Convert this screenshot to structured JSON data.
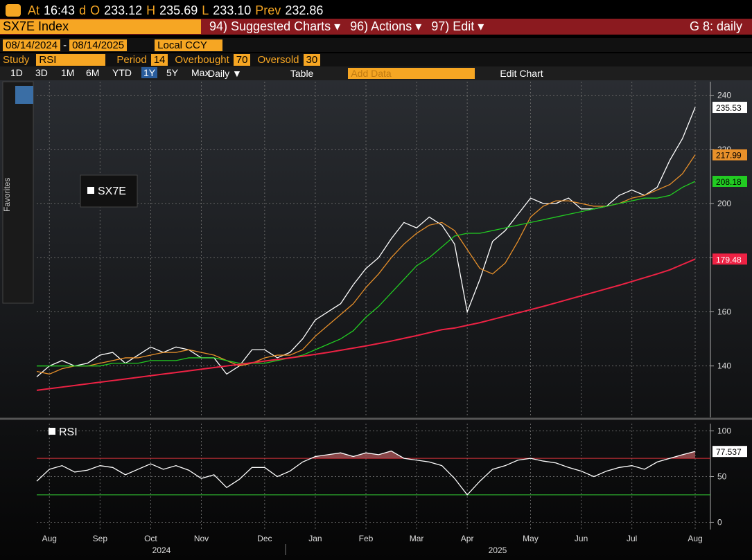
{
  "header": {
    "at_label": "At",
    "time": "16:43",
    "d": "d",
    "open_label": "O",
    "open": "233.12",
    "high_label": "H",
    "high": "235.69",
    "low_label": "L",
    "low": "233.10",
    "prev_label": "Prev",
    "prev": "232.86"
  },
  "toolbar": {
    "ticker": "SX7E Index",
    "suggested": "94) Suggested Charts ▾",
    "actions": "96) Actions ▾",
    "edit": "97) Edit ▾",
    "graph": "G 8: daily",
    "date_from": "08/14/2024",
    "date_sep": "-",
    "date_to": "08/14/2025",
    "currency": "Local CCY",
    "study_label": "Study",
    "study": "RSI",
    "period_label": "Period",
    "period": "14",
    "overbought_label": "Overbought",
    "oversold_label": "Oversold",
    "ranges": [
      "1D",
      "3D",
      "1M",
      "6M",
      "YTD",
      "1Y",
      "5Y",
      "Max"
    ],
    "frequency": "Daily ▼",
    "table": "Table",
    "add_data": "Add Data",
    "edit_chart": "Edit Chart",
    "favorites": "Favorites"
  },
  "chart_data": [
    {
      "type": "line",
      "ylim": [
        121,
        245
      ],
      "yticks": [
        140,
        160,
        180,
        200,
        220,
        240
      ],
      "grid": true,
      "series": [
        {
          "name": "SX7E",
          "color": "#ffffff",
          "values": [
            136,
            140,
            142,
            140,
            141,
            144,
            145,
            141,
            144,
            147,
            145,
            147,
            146,
            143,
            143,
            137,
            140,
            146,
            146,
            143,
            145,
            150,
            157,
            160,
            163,
            170,
            176,
            180,
            187,
            193,
            191,
            195,
            192,
            185,
            160,
            172,
            186,
            190,
            196,
            202,
            200,
            200,
            202,
            198,
            198,
            199,
            203,
            205,
            203,
            206,
            216,
            224,
            235.53
          ]
        },
        {
          "color": "#e8902a",
          "values": [
            138,
            137,
            139,
            140,
            140,
            141,
            142,
            143,
            143,
            144,
            145,
            145,
            146,
            145,
            144,
            142,
            140,
            141,
            143,
            144,
            144,
            146,
            151,
            155,
            159,
            163,
            169,
            174,
            180,
            185,
            189,
            192,
            193,
            190,
            183,
            176,
            174,
            178,
            186,
            195,
            199,
            201,
            201,
            200,
            199,
            199,
            200,
            202,
            203,
            205,
            207,
            211,
            217.99
          ]
        },
        {
          "color": "#22cc22",
          "values": [
            140,
            140,
            140,
            140,
            140,
            140,
            141,
            141,
            141,
            142,
            142,
            142,
            143,
            143,
            143,
            142,
            141,
            141,
            141,
            142,
            143,
            144,
            146,
            148,
            150,
            153,
            158,
            162,
            167,
            172,
            177,
            180,
            184,
            188,
            189,
            189,
            190,
            191,
            192,
            193,
            194,
            195,
            196,
            197,
            198,
            199,
            200,
            201,
            202,
            202,
            203,
            206,
            208.18
          ]
        },
        {
          "color": "#ee2244",
          "values": [
            131,
            131.6,
            132.2,
            132.8,
            133.4,
            134,
            134.6,
            135.2,
            135.8,
            136.4,
            137,
            137.6,
            138.2,
            138.8,
            139.4,
            140,
            140.6,
            141.2,
            141.8,
            142.4,
            143,
            143.6,
            144.3,
            145,
            145.8,
            146.6,
            147.4,
            148.3,
            149.2,
            150.2,
            151.2,
            152.3,
            153.4,
            154,
            155,
            156,
            157.2,
            158.4,
            159.6,
            160.8,
            162,
            163.3,
            164.6,
            165.9,
            167.2,
            168.5,
            169.8,
            171.2,
            172.6,
            174,
            175.5,
            177.5,
            179.48
          ]
        }
      ]
    },
    {
      "type": "line",
      "ylim": [
        -8,
        108
      ],
      "yticks": [
        0,
        50,
        100
      ],
      "overbought": 70,
      "oversold": 30,
      "categories": [
        null,
        "Aug",
        null,
        null,
        null,
        "Sep",
        null,
        null,
        null,
        "Oct",
        null,
        null,
        null,
        "Nov",
        null,
        null,
        null,
        null,
        "Dec",
        null,
        null,
        null,
        "Jan",
        null,
        null,
        null,
        "Feb",
        null,
        null,
        null,
        "Mar",
        null,
        null,
        null,
        "Apr",
        null,
        null,
        null,
        null,
        "May",
        null,
        null,
        null,
        "Jun",
        null,
        null,
        null,
        "Jul",
        null,
        null,
        null,
        null,
        "Aug"
      ],
      "year_labels": [
        "2024",
        "2025"
      ],
      "series": [
        {
          "name": "RSI",
          "color": "#ffffff",
          "values": [
            45,
            58,
            62,
            55,
            57,
            62,
            60,
            52,
            58,
            64,
            58,
            62,
            57,
            48,
            52,
            38,
            47,
            60,
            60,
            50,
            56,
            66,
            72,
            74,
            76,
            72,
            76,
            74,
            78,
            70,
            68,
            66,
            62,
            48,
            30,
            45,
            58,
            62,
            68,
            70,
            67,
            65,
            60,
            56,
            50,
            56,
            60,
            62,
            58,
            66,
            70,
            74,
            77.537
          ]
        }
      ]
    }
  ]
}
